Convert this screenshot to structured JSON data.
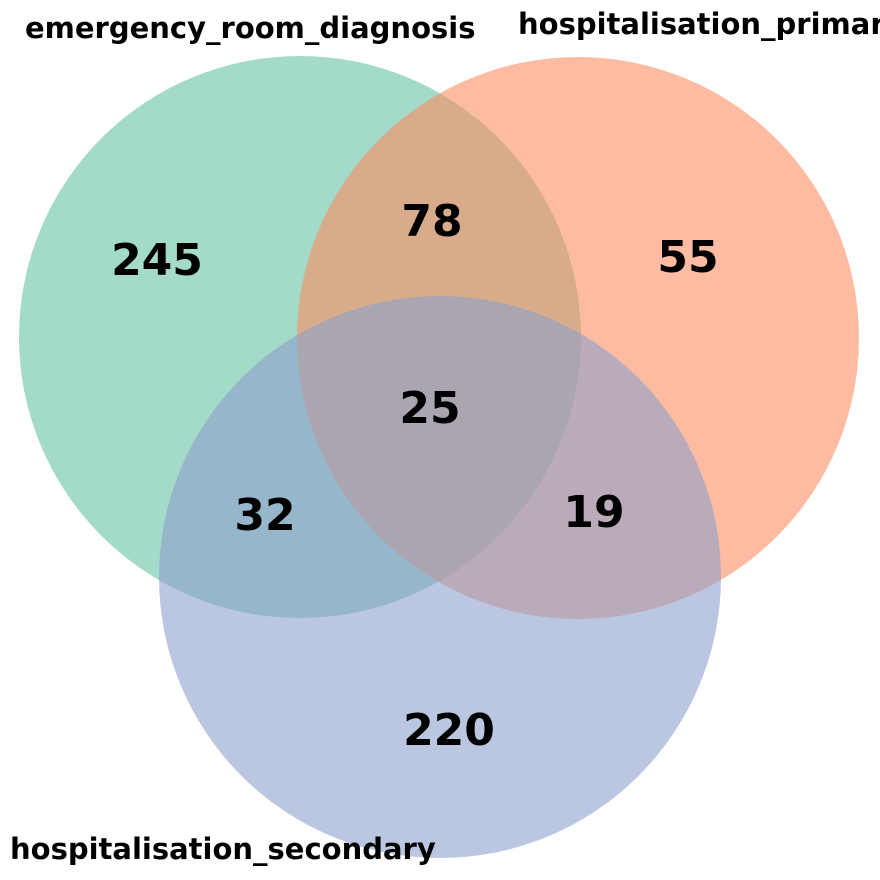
{
  "diagram": {
    "type": "venn3",
    "sets": [
      {
        "label": "emergency_room_diagnosis",
        "color": "#66c2a5"
      },
      {
        "label": "hospitalisation_primary",
        "color": "#fc8d62"
      },
      {
        "label": "hospitalisation_secondary",
        "color": "#8da0cb"
      }
    ],
    "regions": {
      "a_only": "245",
      "b_only": "55",
      "c_only": "220",
      "ab_only": "78",
      "ac_only": "32",
      "bc_only": "19",
      "abc": "25"
    },
    "fill_opacity": 0.6
  }
}
